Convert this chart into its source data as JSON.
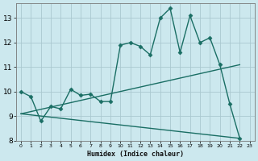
{
  "xlabel": "Humidex (Indice chaleur)",
  "background_color": "#cce8ee",
  "grid_color": "#aac8d0",
  "line_color": "#1a6e64",
  "xlim": [
    -0.5,
    23.5
  ],
  "ylim": [
    8,
    13.6
  ],
  "yticks": [
    8,
    9,
    10,
    11,
    12,
    13
  ],
  "xticks": [
    0,
    1,
    2,
    3,
    4,
    5,
    6,
    7,
    8,
    9,
    10,
    11,
    12,
    13,
    14,
    15,
    16,
    17,
    18,
    19,
    20,
    21,
    22,
    23
  ],
  "series0_x": [
    0,
    1,
    2,
    3,
    4,
    5,
    6,
    7,
    8,
    9,
    10,
    11,
    12,
    13,
    14,
    15,
    16,
    17,
    18,
    19,
    20,
    21,
    22
  ],
  "series0_y": [
    10.0,
    9.8,
    8.8,
    9.4,
    9.3,
    10.1,
    9.85,
    9.9,
    9.6,
    9.6,
    11.9,
    12.0,
    11.85,
    11.5,
    13.0,
    13.4,
    11.6,
    13.1,
    12.0,
    12.2,
    11.1,
    9.5,
    8.1
  ],
  "series1_x": [
    0,
    22
  ],
  "series1_y": [
    9.1,
    11.1
  ],
  "series2_x": [
    0,
    22
  ],
  "series2_y": [
    9.1,
    8.1
  ]
}
